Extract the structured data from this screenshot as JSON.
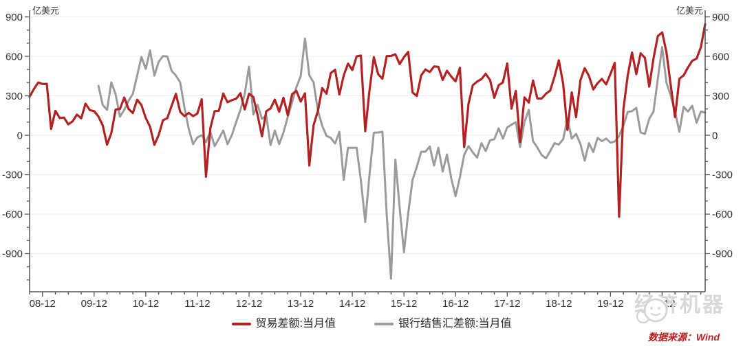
{
  "chart_data": {
    "type": "line",
    "title": "",
    "unit_label": "亿美元",
    "start_month": "2008-09",
    "end_month": "2021-10",
    "x_tick_labels": [
      "08-12",
      "09-12",
      "10-12",
      "11-12",
      "12-12",
      "13-12",
      "14-12",
      "15-12",
      "16-12",
      "17-12",
      "18-12",
      "19-12",
      "20-12"
    ],
    "y_ticks": [
      900,
      600,
      300,
      0,
      -300,
      -600,
      -900
    ],
    "y_minor_step": 100,
    "x_minor_step_months": 3,
    "y_range": [
      -1190,
      950
    ],
    "grid": true,
    "legend_position": "bottom",
    "series": [
      {
        "name": "贸易差额:当月值",
        "color": "#b22222",
        "values": [
          293,
          352,
          401,
          390,
          391,
          48,
          186,
          131,
          134,
          83,
          106,
          157,
          129,
          240,
          191,
          184,
          142,
          76,
          -72,
          17,
          195,
          200,
          287,
          200,
          169,
          271,
          229,
          131,
          65,
          -73,
          1,
          114,
          130,
          223,
          315,
          178,
          145,
          170,
          145,
          165,
          273,
          -315,
          53,
          184,
          187,
          317,
          251,
          267,
          277,
          320,
          196,
          316,
          291,
          153,
          -9,
          182,
          204,
          271,
          178,
          285,
          152,
          311,
          338,
          256,
          319,
          -230,
          77,
          185,
          359,
          316,
          473,
          498,
          310,
          454,
          545,
          496,
          600,
          606,
          31,
          341,
          594,
          465,
          430,
          602,
          603,
          616,
          541,
          594,
          633,
          325,
          299,
          455,
          500,
          481,
          523,
          520,
          420,
          490,
          446,
          409,
          513,
          -91,
          239,
          380,
          408,
          427,
          467,
          420,
          285,
          380,
          402,
          546,
          203,
          337,
          -50,
          288,
          249,
          416,
          280,
          279,
          316,
          340,
          447,
          570,
          391,
          41,
          326,
          138,
          417,
          510,
          450,
          348,
          396,
          428,
          387,
          467,
          550,
          -620,
          199,
          453,
          629,
          464,
          623,
          589,
          370,
          584,
          754,
          782,
          632,
          378,
          138,
          429,
          455,
          515,
          566,
          583,
          668,
          845
        ]
      },
      {
        "name": "银行结售汇差额:当月值",
        "color": "#9b9b9b",
        "values": [
          null,
          null,
          null,
          null,
          null,
          null,
          null,
          null,
          null,
          null,
          null,
          null,
          null,
          null,
          null,
          null,
          376,
          230,
          193,
          402,
          310,
          141,
          193,
          262,
          315,
          455,
          595,
          505,
          645,
          454,
          558,
          602,
          600,
          490,
          454,
          402,
          209,
          47,
          -68,
          -16,
          0,
          -52,
          26,
          -83,
          -26,
          36,
          -68,
          0,
          99,
          193,
          313,
          522,
          157,
          230,
          125,
          150,
          -75,
          36,
          -68,
          20,
          140,
          250,
          365,
          450,
          735,
          455,
          402,
          187,
          73,
          -5,
          -20,
          -63,
          26,
          -340,
          -95,
          -95,
          -95,
          -344,
          -660,
          -300,
          20,
          21,
          26,
          -605,
          -1090,
          -185,
          -550,
          -890,
          -590,
          -340,
          -240,
          -125,
          -125,
          -85,
          -230,
          -95,
          -276,
          -146,
          -330,
          -463,
          -320,
          -150,
          -83,
          -130,
          -170,
          -60,
          -120,
          -38,
          -30,
          52,
          -25,
          60,
          80,
          100,
          -90,
          100,
          193,
          -45,
          -94,
          -150,
          -176,
          -120,
          -60,
          -71,
          -30,
          125,
          -25,
          10,
          -65,
          -193,
          -60,
          -128,
          -20,
          -45,
          -25,
          -56,
          -48,
          -5,
          73,
          177,
          183,
          209,
          21,
          10,
          125,
          180,
          430,
          670,
          400,
          300,
          180,
          26,
          216,
          180,
          224,
          95,
          180,
          172
        ]
      }
    ]
  },
  "legend": {
    "items": [
      "贸易差额:当月值",
      "银行结售汇差额:当月值"
    ]
  },
  "watermark": {
    "brand": "经济机器"
  },
  "source": {
    "text": "数据来源：Wind",
    "color": "#bf1d1d"
  }
}
